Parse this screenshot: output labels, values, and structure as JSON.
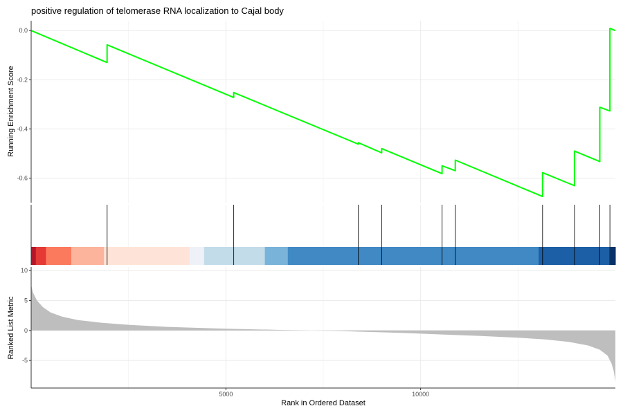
{
  "chart_data": {
    "type": "line",
    "title": "positive regulation of telomerase RNA localization to Cajal body",
    "xlabel": "Rank in Ordered Dataset",
    "xlim": [
      0,
      15000
    ],
    "x_ticks": [
      5000,
      10000
    ],
    "x_tick_labels": [
      "5000",
      "10000"
    ],
    "panels": [
      {
        "name": "running-enrichment-score",
        "ylabel": "Running Enrichment Score",
        "ylim": [
          -0.7,
          0.04
        ],
        "y_ticks": [
          0.0,
          -0.2,
          -0.4,
          -0.6
        ],
        "y_tick_labels": [
          "0.0",
          "-0.2",
          "-0.4",
          "-0.6"
        ],
        "line_color": "#00ff00",
        "x": [
          0,
          1950,
          1950,
          5200,
          5200,
          8400,
          8400,
          9000,
          9000,
          10550,
          10550,
          10890,
          10890,
          13130,
          13130,
          13950,
          13950,
          14600,
          14600,
          14860,
          14860,
          14950,
          15000
        ],
        "y": [
          0.0,
          -0.13,
          -0.058,
          -0.272,
          -0.252,
          -0.462,
          -0.456,
          -0.497,
          -0.48,
          -0.582,
          -0.55,
          -0.57,
          -0.527,
          -0.675,
          -0.578,
          -0.631,
          -0.49,
          -0.533,
          -0.312,
          -0.327,
          0.009,
          0.003,
          0.0
        ]
      },
      {
        "name": "gene-hits",
        "hit_positions": [
          1950,
          5200,
          8400,
          9000,
          10550,
          10890,
          13130,
          13950,
          14600,
          14860
        ],
        "color_bands": [
          {
            "start": 0,
            "end": 120,
            "color": "#b2182b"
          },
          {
            "start": 120,
            "end": 380,
            "color": "#e53935"
          },
          {
            "start": 380,
            "end": 1030,
            "color": "#fb7a5e"
          },
          {
            "start": 1030,
            "end": 1870,
            "color": "#fcb49c"
          },
          {
            "start": 1870,
            "end": 4070,
            "color": "#fee4d8"
          },
          {
            "start": 4070,
            "end": 4440,
            "color": "#eef2f8"
          },
          {
            "start": 4440,
            "end": 6000,
            "color": "#c2dcea"
          },
          {
            "start": 6000,
            "end": 6590,
            "color": "#7ab3d9"
          },
          {
            "start": 6590,
            "end": 13030,
            "color": "#4089c4"
          },
          {
            "start": 13030,
            "end": 14880,
            "color": "#1d5fa6"
          },
          {
            "start": 14880,
            "end": 15000,
            "color": "#08306b"
          }
        ]
      },
      {
        "name": "ranked-list-metric",
        "ylabel": "Ranked List Metric",
        "ylim": [
          -9.6,
          10.6
        ],
        "y_ticks": [
          10,
          5,
          0,
          -5
        ],
        "y_tick_labels": [
          "10",
          "5",
          "0",
          "-5"
        ],
        "fill_color": "#bebebe",
        "x": [
          0,
          50,
          150,
          300,
          500,
          800,
          1200,
          1800,
          2500,
          3500,
          5000,
          6500,
          7800,
          8500,
          9500,
          10500,
          11500,
          12500,
          13200,
          13800,
          14300,
          14600,
          14800,
          14900,
          14960,
          15000
        ],
        "y": [
          7.6,
          6.3,
          5.0,
          3.9,
          3.0,
          2.3,
          1.75,
          1.3,
          0.95,
          0.6,
          0.3,
          0.08,
          -0.05,
          -0.2,
          -0.4,
          -0.65,
          -0.9,
          -1.2,
          -1.5,
          -1.9,
          -2.5,
          -3.2,
          -4.2,
          -5.5,
          -6.8,
          -8.6
        ]
      }
    ],
    "grid": true
  }
}
